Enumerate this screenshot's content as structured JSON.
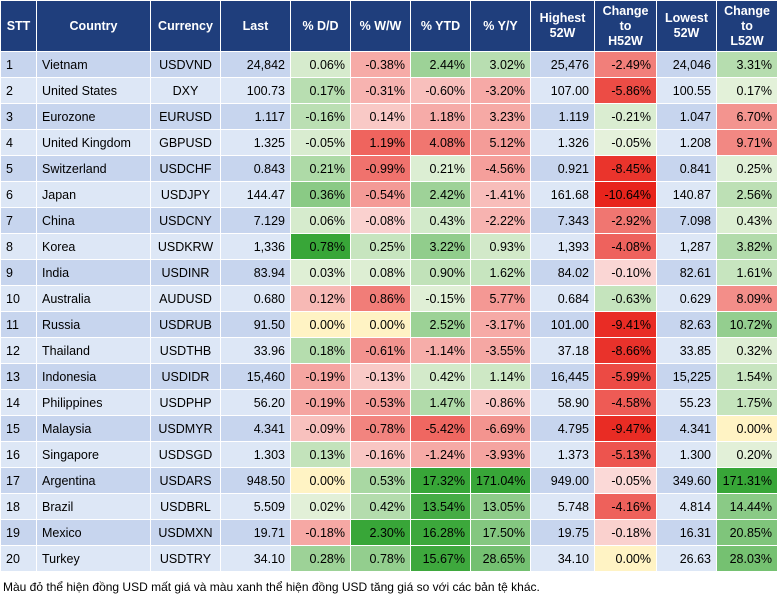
{
  "table": {
    "headers": [
      "STT",
      "Country",
      "Currency",
      "Last",
      "% D/D",
      "% W/W",
      "% YTD",
      "% Y/Y",
      "Highest\n52W",
      "Change\nto\nH52W",
      "Lowest\n52W",
      "Change\nto\nL52W"
    ],
    "rows": [
      [
        "1",
        "Vietnam",
        "USDVND",
        "24,842",
        "0.06%",
        "-0.38%",
        "2.44%",
        "3.02%",
        "25,476",
        "-2.49%",
        "24,046",
        "3.31%"
      ],
      [
        "2",
        "United States",
        "DXY",
        "100.73",
        "0.17%",
        "-0.31%",
        "-0.60%",
        "-3.20%",
        "107.00",
        "-5.86%",
        "100.55",
        "0.17%"
      ],
      [
        "3",
        "Eurozone",
        "EURUSD",
        "1.117",
        "-0.16%",
        "0.14%",
        "1.18%",
        "3.23%",
        "1.119",
        "-0.21%",
        "1.047",
        "6.70%"
      ],
      [
        "4",
        "United Kingdom",
        "GBPUSD",
        "1.325",
        "-0.05%",
        "1.19%",
        "4.08%",
        "5.12%",
        "1.326",
        "-0.05%",
        "1.208",
        "9.71%"
      ],
      [
        "5",
        "Switzerland",
        "USDCHF",
        "0.843",
        "0.21%",
        "-0.99%",
        "0.21%",
        "-4.56%",
        "0.921",
        "-8.45%",
        "0.841",
        "0.25%"
      ],
      [
        "6",
        "Japan",
        "USDJPY",
        "144.47",
        "0.36%",
        "-0.54%",
        "2.42%",
        "-1.41%",
        "161.68",
        "-10.64%",
        "140.87",
        "2.56%"
      ],
      [
        "7",
        "China",
        "USDCNY",
        "7.129",
        "0.06%",
        "-0.08%",
        "0.43%",
        "-2.22%",
        "7.343",
        "-2.92%",
        "7.098",
        "0.43%"
      ],
      [
        "8",
        "Korea",
        "USDKRW",
        "1,336",
        "0.78%",
        "0.25%",
        "3.22%",
        "0.93%",
        "1,393",
        "-4.08%",
        "1,287",
        "3.82%"
      ],
      [
        "9",
        "India",
        "USDINR",
        "83.94",
        "0.03%",
        "0.08%",
        "0.90%",
        "1.62%",
        "84.02",
        "-0.10%",
        "82.61",
        "1.61%"
      ],
      [
        "10",
        "Australia",
        "AUDUSD",
        "0.680",
        "0.12%",
        "0.86%",
        "-0.15%",
        "5.77%",
        "0.684",
        "-0.63%",
        "0.629",
        "8.09%"
      ],
      [
        "11",
        "Russia",
        "USDRUB",
        "91.50",
        "0.00%",
        "0.00%",
        "2.52%",
        "-3.17%",
        "101.00",
        "-9.41%",
        "82.63",
        "10.72%"
      ],
      [
        "12",
        "Thailand",
        "USDTHB",
        "33.96",
        "0.18%",
        "-0.61%",
        "-1.14%",
        "-3.55%",
        "37.18",
        "-8.66%",
        "33.85",
        "0.32%"
      ],
      [
        "13",
        "Indonesia",
        "USDIDR",
        "15,460",
        "-0.19%",
        "-0.13%",
        "0.42%",
        "1.14%",
        "16,445",
        "-5.99%",
        "15,225",
        "1.54%"
      ],
      [
        "14",
        "Philippines",
        "USDPHP",
        "56.20",
        "-0.19%",
        "-0.53%",
        "1.47%",
        "-0.86%",
        "58.90",
        "-4.58%",
        "55.23",
        "1.75%"
      ],
      [
        "15",
        "Malaysia",
        "USDMYR",
        "4.341",
        "-0.09%",
        "-0.78%",
        "-5.42%",
        "-6.69%",
        "4.795",
        "-9.47%",
        "4.341",
        "0.00%"
      ],
      [
        "16",
        "Singapore",
        "USDSGD",
        "1.303",
        "0.13%",
        "-0.16%",
        "-1.24%",
        "-3.93%",
        "1.373",
        "-5.13%",
        "1.300",
        "0.20%"
      ],
      [
        "17",
        "Argentina",
        "USDARS",
        "948.50",
        "0.00%",
        "0.53%",
        "17.32%",
        "171.04%",
        "949.00",
        "-0.05%",
        "349.60",
        "171.31%"
      ],
      [
        "18",
        "Brazil",
        "USDBRL",
        "5.509",
        "0.02%",
        "0.42%",
        "13.54%",
        "13.05%",
        "5.748",
        "-4.16%",
        "4.814",
        "14.44%"
      ],
      [
        "19",
        "Mexico",
        "USDMXN",
        "19.71",
        "-0.18%",
        "2.30%",
        "16.28%",
        "17.50%",
        "19.75",
        "-0.18%",
        "16.31",
        "20.85%"
      ],
      [
        "20",
        "Turkey",
        "USDTRY",
        "34.10",
        "0.28%",
        "0.78%",
        "15.67%",
        "28.65%",
        "34.10",
        "0.00%",
        "26.63",
        "28.03%"
      ]
    ]
  },
  "footer": {
    "note": "Màu đỏ thể hiện đồng USD mất giá và màu xanh thể hiện đồng USD tăng giá so với các bản tệ khác."
  }
}
